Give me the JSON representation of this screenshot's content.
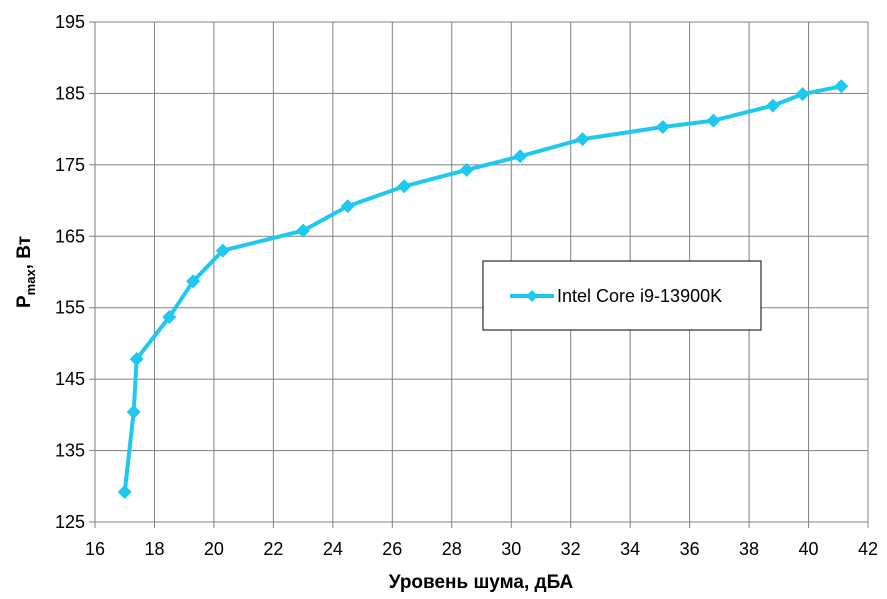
{
  "chart_data": {
    "type": "line",
    "title": "",
    "xlabel": "Уровень шума, дБА",
    "ylabel_main": "P",
    "ylabel_sub": "max",
    "ylabel_suffix": ", Вт",
    "xlim": [
      16,
      42
    ],
    "ylim": [
      125,
      195
    ],
    "x_ticks": [
      16,
      18,
      20,
      22,
      24,
      26,
      28,
      30,
      32,
      34,
      36,
      38,
      40,
      42
    ],
    "y_ticks": [
      125,
      135,
      145,
      155,
      165,
      175,
      185,
      195
    ],
    "grid": true,
    "legend_position": "center-right",
    "series": [
      {
        "name": "Intel Core i9-13900K",
        "color": "#1ec8f0",
        "marker": "diamond",
        "x": [
          17.0,
          17.3,
          17.4,
          18.5,
          19.3,
          20.3,
          23.0,
          24.5,
          26.4,
          28.5,
          30.3,
          32.4,
          35.1,
          36.8,
          38.8,
          39.8,
          41.1
        ],
        "y": [
          129.2,
          140.4,
          147.8,
          153.7,
          158.7,
          163.0,
          165.8,
          169.2,
          172.0,
          174.3,
          176.2,
          178.6,
          180.3,
          181.2,
          183.3,
          184.9,
          186.0
        ]
      }
    ]
  }
}
